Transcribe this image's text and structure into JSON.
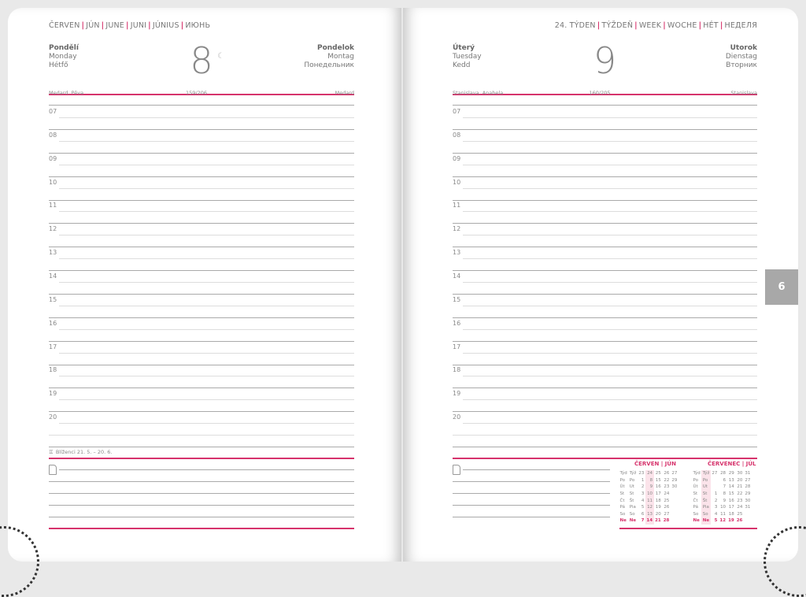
{
  "left": {
    "month_header": [
      "ČERVEN",
      "JÚN",
      "JUNE",
      "JUNI",
      "JÚNIUS",
      "ИЮНЬ"
    ],
    "day_names_left": [
      "Pondělí",
      "Monday",
      "Hétfő"
    ],
    "day_number": "8",
    "moon_icon": "☾",
    "day_names_right": [
      "Pondelok",
      "Montag",
      "Понедельник"
    ],
    "nameday_left": "Medard, Pěva",
    "day_of_year": "159/206",
    "nameday_right": "Medard",
    "zodiac": "Blíženci 21. 5. – 20. 6."
  },
  "right": {
    "week_header": [
      "24. TÝDEN",
      "TÝŽDEŇ",
      "WEEK",
      "WOCHE",
      "HÉT",
      "НЕДЕЛЯ"
    ],
    "day_names_left": [
      "Úterý",
      "Tuesday",
      "Kedd"
    ],
    "day_number": "9",
    "day_names_right": [
      "Utorok",
      "Dienstag",
      "Вторник"
    ],
    "nameday_left": "Stanislava, Anabela",
    "day_of_year": "160/205",
    "nameday_right": "Stanislava"
  },
  "hours": [
    "07",
    "08",
    "09",
    "10",
    "11",
    "12",
    "13",
    "14",
    "15",
    "16",
    "17",
    "18",
    "19",
    "20"
  ],
  "month_tab": "6",
  "accent": "#d6336c",
  "mini_calendars": [
    {
      "title": "ČERVEN | JÚN",
      "weeks": [
        "23",
        "24",
        "25",
        "26",
        "27"
      ],
      "highlight_week": 1,
      "rows": [
        [
          "Týd",
          "Týž"
        ],
        [
          "Po",
          "Po",
          "1",
          "8",
          "15",
          "22",
          "29"
        ],
        [
          "Út",
          "Ut",
          "2",
          "9",
          "16",
          "23",
          "30"
        ],
        [
          "St",
          "St",
          "3",
          "10",
          "17",
          "24",
          ""
        ],
        [
          "Čt",
          "Št",
          "4",
          "11",
          "18",
          "25",
          ""
        ],
        [
          "Pá",
          "Pia",
          "5",
          "12",
          "19",
          "26",
          ""
        ],
        [
          "So",
          "So",
          "6",
          "13",
          "20",
          "27",
          ""
        ],
        [
          "Ne",
          "Ne",
          "7",
          "14",
          "21",
          "28",
          ""
        ]
      ]
    },
    {
      "title": "ČERVENEC | JÚL",
      "weeks": [
        "27",
        "28",
        "29",
        "30",
        "31"
      ],
      "highlight_week": -1,
      "rows": [
        [
          "Týd",
          "Týž"
        ],
        [
          "Po",
          "Po",
          "",
          "6",
          "13",
          "20",
          "27"
        ],
        [
          "Út",
          "Ut",
          "",
          "7",
          "14",
          "21",
          "28"
        ],
        [
          "St",
          "St",
          "1",
          "8",
          "15",
          "22",
          "29"
        ],
        [
          "Čt",
          "Št",
          "2",
          "9",
          "16",
          "23",
          "30"
        ],
        [
          "Pá",
          "Pia",
          "3",
          "10",
          "17",
          "24",
          "31"
        ],
        [
          "So",
          "So",
          "4",
          "11",
          "18",
          "25",
          ""
        ],
        [
          "Ne",
          "Ne",
          "5",
          "12",
          "19",
          "26",
          ""
        ]
      ]
    }
  ]
}
